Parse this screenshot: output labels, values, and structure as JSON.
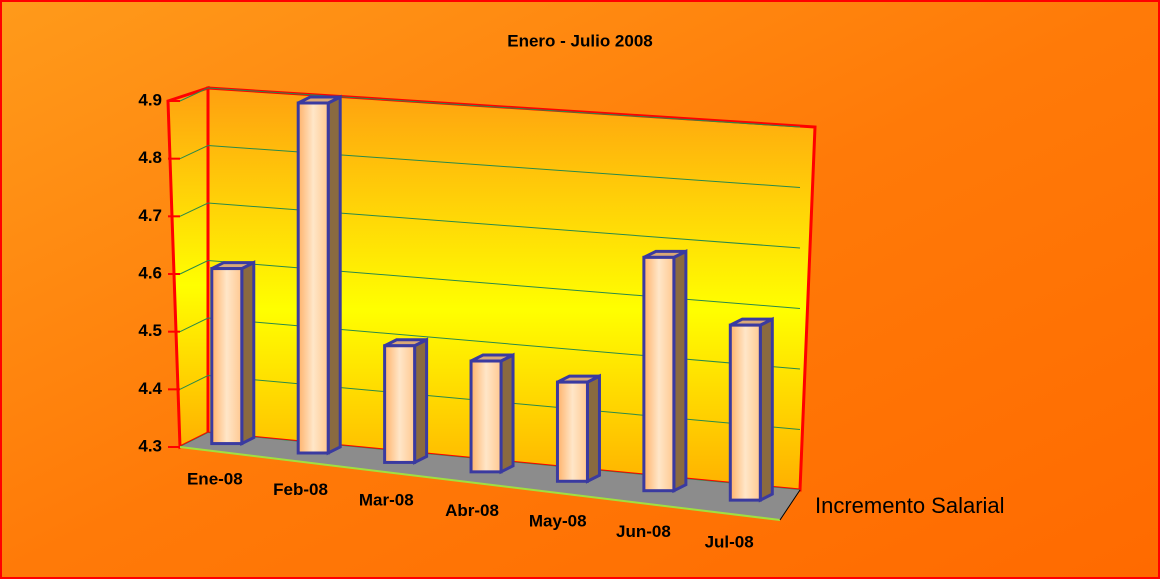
{
  "chart_data": {
    "type": "bar3d",
    "title": "Enero - Julio 2008",
    "categories": [
      "Ene-08",
      "Feb-08",
      "Mar-08",
      "Abr-08",
      "May-08",
      "Jun-08",
      "Jul-08"
    ],
    "series": [
      {
        "name": "Incremento Salarial",
        "color": "#ffc58a",
        "values": [
          4.6,
          4.9,
          4.5,
          4.49,
          4.47,
          4.7,
          4.6
        ]
      }
    ],
    "ylim": [
      4.3,
      4.9
    ],
    "yticks": [
      4.3,
      4.4,
      4.5,
      4.6,
      4.7,
      4.8,
      4.9
    ],
    "grid": true
  }
}
